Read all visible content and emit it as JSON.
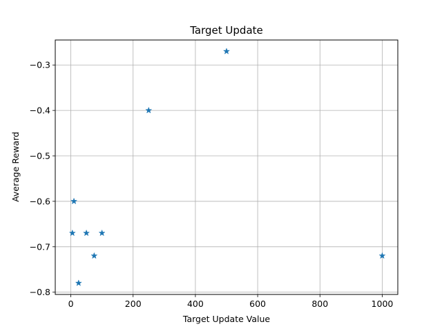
{
  "chart_data": {
    "type": "scatter",
    "title": "Target Update",
    "xlabel": "Target Update Value",
    "ylabel": "Average Reward",
    "xlim": [
      -50,
      1050
    ],
    "ylim": [
      -0.805,
      -0.245
    ],
    "x_ticks": [
      0,
      200,
      400,
      600,
      800,
      1000
    ],
    "y_ticks": [
      -0.8,
      -0.7,
      -0.6,
      -0.5,
      -0.4,
      -0.3
    ],
    "x_tick_labels": [
      "0",
      "200",
      "400",
      "600",
      "800",
      "1000"
    ],
    "y_tick_labels": [
      "−0.8",
      "−0.7",
      "−0.6",
      "−0.5",
      "−0.4",
      "−0.3"
    ],
    "grid": true,
    "marker": "star",
    "color": "#1f77b4",
    "points": [
      {
        "x": 5,
        "y": -0.67
      },
      {
        "x": 10,
        "y": -0.6
      },
      {
        "x": 25,
        "y": -0.78
      },
      {
        "x": 50,
        "y": -0.67
      },
      {
        "x": 75,
        "y": -0.72
      },
      {
        "x": 100,
        "y": -0.67
      },
      {
        "x": 250,
        "y": -0.4
      },
      {
        "x": 500,
        "y": -0.27
      },
      {
        "x": 1000,
        "y": -0.72
      }
    ]
  }
}
